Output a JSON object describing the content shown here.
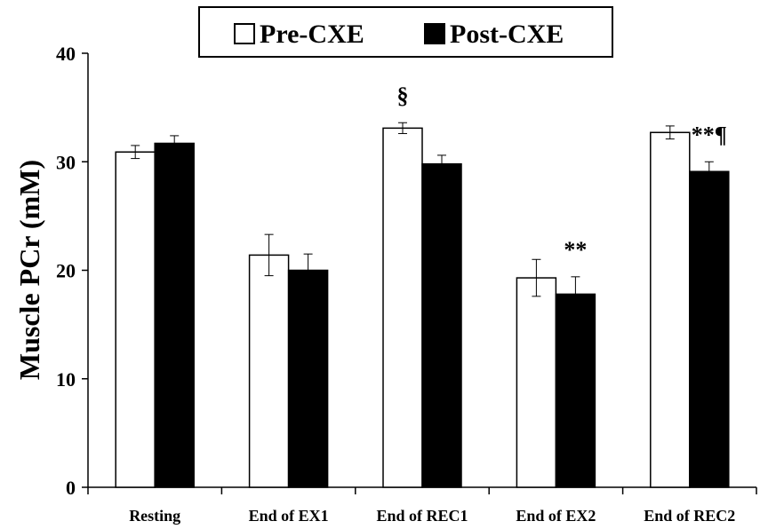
{
  "chart_data": {
    "type": "bar",
    "ylabel": "Muscle PCr (mM)",
    "xlabel": "",
    "ylim": [
      0,
      40
    ],
    "yticks": [
      0,
      10,
      20,
      30,
      40
    ],
    "grid": false,
    "legend_position": "top-center",
    "categories": [
      "Resting",
      "End of EX1",
      "End of REC1",
      "End of EX2",
      "End of REC2"
    ],
    "series": [
      {
        "name": "Pre-CXE",
        "fill": "#ffffff",
        "values": [
          30.9,
          21.4,
          33.1,
          19.3,
          32.7
        ],
        "errors": [
          0.6,
          1.9,
          0.5,
          1.7,
          0.6
        ]
      },
      {
        "name": "Post-CXE",
        "fill": "#000000",
        "values": [
          31.7,
          20.0,
          29.8,
          17.8,
          29.1
        ],
        "errors": [
          0.7,
          1.5,
          0.8,
          1.6,
          0.9
        ]
      }
    ],
    "annotations": [
      {
        "text": "§",
        "category": 2,
        "series": 0
      },
      {
        "text": "**",
        "category": 3,
        "series": 1
      },
      {
        "text": "**¶",
        "category": 4,
        "series": 1
      }
    ]
  }
}
